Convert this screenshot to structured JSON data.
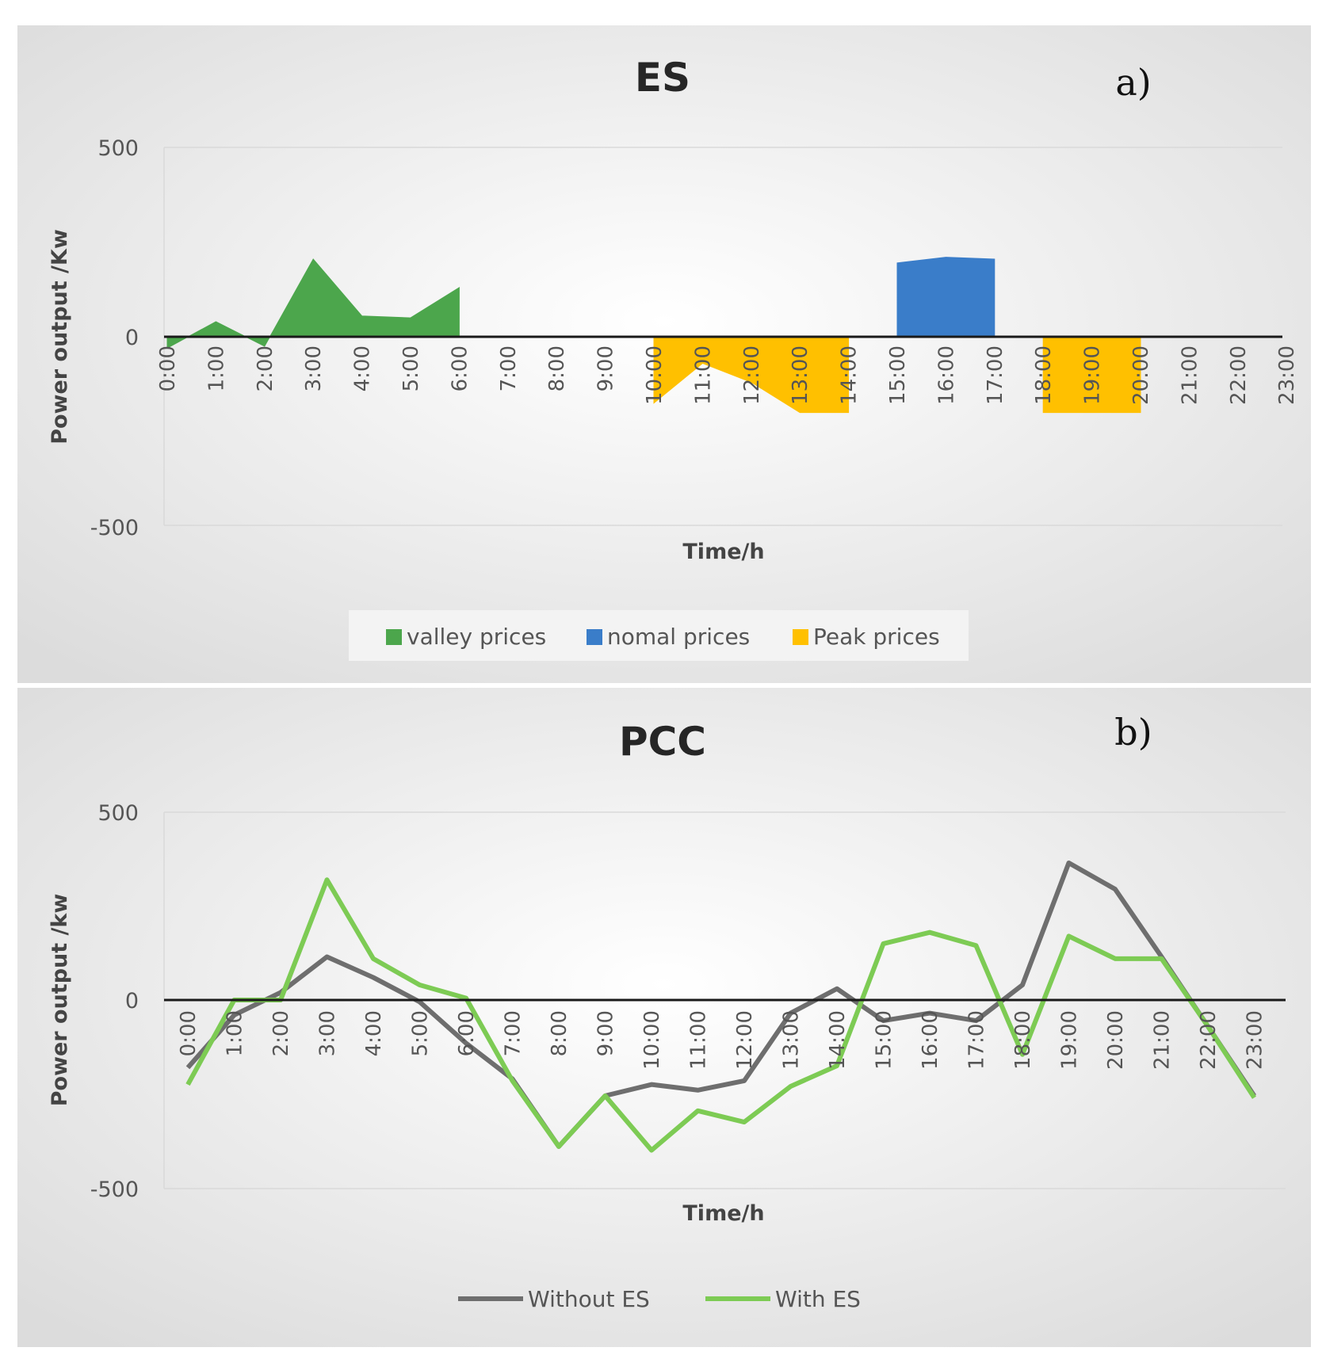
{
  "chart_data": [
    {
      "type": "area",
      "title": "ES",
      "panel_label": "a)",
      "xlabel": "Time/h",
      "ylabel": "Power output /Kw",
      "ylim": [
        -500,
        500
      ],
      "yticks": [
        "500",
        "0",
        "-500"
      ],
      "categories": [
        "0:00",
        "1:00",
        "2:00",
        "3:00",
        "4:00",
        "5:00",
        "6:00",
        "7:00",
        "8:00",
        "9:00",
        "10:00",
        "11:00",
        "12:00",
        "13:00",
        "14:00",
        "15:00",
        "16:00",
        "17:00",
        "18:00",
        "19:00",
        "20:00",
        "21:00",
        "22:00",
        "23:00"
      ],
      "series": [
        {
          "name": "valley prices",
          "color": "#4CA64C",
          "values": [
            -30,
            40,
            -25,
            205,
            55,
            50,
            130,
            null,
            null,
            null,
            null,
            null,
            null,
            null,
            null,
            null,
            null,
            null,
            null,
            null,
            null,
            null,
            null,
            null
          ]
        },
        {
          "name": "nomal prices",
          "color": "#3A7DC9",
          "values": [
            null,
            null,
            null,
            null,
            null,
            null,
            null,
            null,
            null,
            null,
            null,
            null,
            null,
            null,
            null,
            195,
            210,
            205,
            null,
            null,
            null,
            null,
            null,
            null
          ]
        },
        {
          "name": "Peak prices",
          "color": "#FFC000",
          "values": [
            null,
            null,
            null,
            null,
            null,
            null,
            null,
            null,
            null,
            null,
            -175,
            -70,
            -120,
            -200,
            -200,
            null,
            null,
            null,
            -200,
            -200,
            -200,
            null,
            null,
            null
          ]
        }
      ]
    },
    {
      "type": "line",
      "title": "PCC",
      "panel_label": "b)",
      "xlabel": "Time/h",
      "ylabel": "Power output /kw",
      "ylim": [
        -500,
        500
      ],
      "yticks": [
        "500",
        "0",
        "-500"
      ],
      "categories": [
        "0:00",
        "1:00",
        "2:00",
        "3:00",
        "4:00",
        "5:00",
        "6:00",
        "7:00",
        "8:00",
        "9:00",
        "10:00",
        "11:00",
        "12:00",
        "13:00",
        "14:00",
        "15:00",
        "16:00",
        "17:00",
        "18:00",
        "19:00",
        "20:00",
        "21:00",
        "22:00",
        "23:00"
      ],
      "series": [
        {
          "name": "Without ES",
          "color": "#6E6E6E",
          "values": [
            -180,
            -40,
            20,
            115,
            60,
            -5,
            -115,
            -210,
            -390,
            -255,
            -225,
            -240,
            -215,
            -35,
            30,
            -55,
            -35,
            -55,
            40,
            365,
            295,
            115,
            -70,
            -255
          ]
        },
        {
          "name": "With ES",
          "color": "#7DCB54",
          "values": [
            -225,
            0,
            0,
            320,
            110,
            40,
            5,
            -215,
            -390,
            -255,
            -400,
            -295,
            -325,
            -230,
            -175,
            150,
            180,
            145,
            -145,
            170,
            110,
            110,
            -70,
            -260
          ]
        }
      ]
    }
  ]
}
